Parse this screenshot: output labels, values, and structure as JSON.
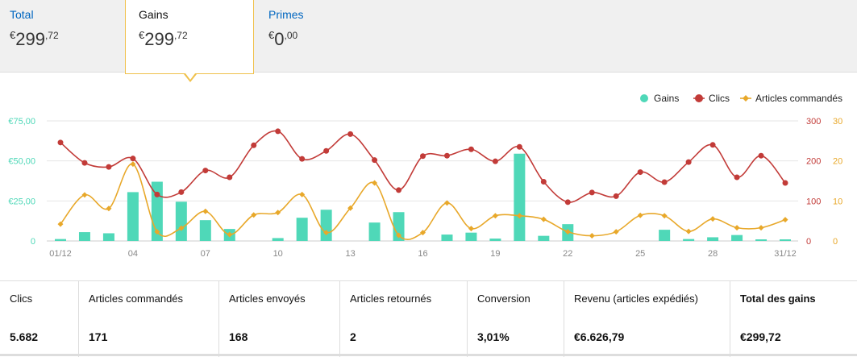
{
  "tabs": [
    {
      "label": "Total",
      "currency": "€",
      "int": "299",
      "dec": ",72"
    },
    {
      "label": "Gains",
      "currency": "€",
      "int": "299",
      "dec": ",72"
    },
    {
      "label": "Primes",
      "currency": "€",
      "int": "0",
      "dec": ",00"
    }
  ],
  "colors": {
    "gains": "#4fd8b8",
    "clics": "#c23b38",
    "articles": "#e8a82a",
    "link": "#0066c0"
  },
  "chart_data": {
    "type": "bar+line",
    "legend": [
      {
        "name": "Gains",
        "color": "#4fd8b8",
        "marker": "circle"
      },
      {
        "name": "Clics",
        "color": "#c23b38",
        "marker": "circle"
      },
      {
        "name": "Articles commandés",
        "color": "#e8a82a",
        "marker": "diamond"
      }
    ],
    "legend_position": "top-right",
    "x_ticks": [
      "01/12",
      "04",
      "07",
      "10",
      "13",
      "16",
      "19",
      "22",
      "25",
      "28",
      "31/12"
    ],
    "y_left_ticks": [
      "€75,00",
      "€50,00",
      "€25,00",
      "0"
    ],
    "y_left_range": [
      0,
      75
    ],
    "y_right1_ticks": [
      "300",
      "200",
      "100",
      "0"
    ],
    "y_right1_range": [
      0,
      300
    ],
    "y_right2_ticks": [
      "30",
      "20",
      "10",
      "0"
    ],
    "y_right2_range": [
      0,
      30
    ],
    "gains": [
      1.2,
      5.5,
      4.8,
      30.5,
      37,
      24.5,
      13,
      7.5,
      0,
      1.8,
      14.5,
      19.5,
      0,
      11.5,
      18,
      0,
      4,
      5.2,
      1.5,
      54.5,
      3.2,
      10.5,
      0,
      0,
      0,
      7,
      1.2,
      2.3,
      3.7,
      1,
      1
    ],
    "clics": [
      246,
      195,
      185,
      206,
      116,
      122,
      176,
      159,
      239,
      274,
      205,
      225,
      267,
      202,
      127,
      212,
      213,
      229,
      199,
      235,
      148,
      97,
      121,
      112,
      172,
      147,
      197,
      240,
      159,
      213,
      145
    ],
    "articles": [
      4.2,
      11.5,
      8.1,
      19.2,
      2.3,
      3.2,
      7.4,
      1.6,
      6.5,
      7.1,
      11.6,
      2.1,
      8.2,
      14.5,
      1.4,
      2.1,
      9.5,
      3.1,
      6.3,
      6.3,
      5.4,
      2.3,
      1.3,
      2.3,
      6.4,
      6.3,
      2.4,
      5.5,
      3.3,
      3.3,
      5.3
    ]
  },
  "stats": [
    {
      "label": "Clics",
      "value": "5.682"
    },
    {
      "label": "Articles commandés",
      "value": "171"
    },
    {
      "label": "Articles envoyés",
      "value": "168"
    },
    {
      "label": "Articles retournés",
      "value": "2"
    },
    {
      "label": "Conversion",
      "value": "3,01%"
    },
    {
      "label": "Revenu (articles expédiés)",
      "value": "€6.626,79"
    },
    {
      "label": "Total des gains",
      "value": "€299,72"
    }
  ]
}
